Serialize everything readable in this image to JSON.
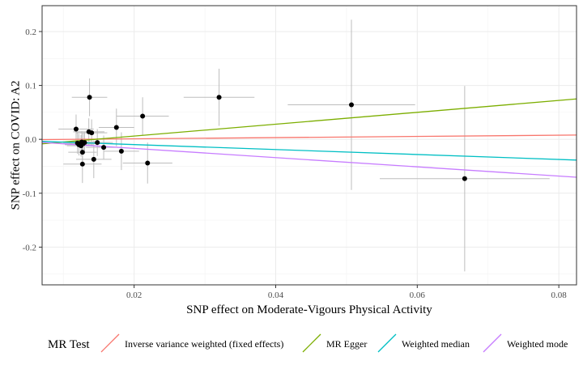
{
  "chart_data": {
    "type": "scatter",
    "xlabel": "SNP effect on Moderate-Vigours Physical Activity",
    "ylabel": "SNP effect on COVID: A2",
    "xlim": [
      0.007,
      0.0825
    ],
    "ylim": [
      -0.27,
      0.248
    ],
    "x_ticks": [
      0.02,
      0.04,
      0.06,
      0.08
    ],
    "x_tick_labels": [
      "0.02",
      "0.04",
      "0.06",
      "0.08"
    ],
    "y_ticks": [
      -0.2,
      -0.1,
      0.0,
      0.1,
      0.2
    ],
    "y_tick_labels": [
      "-0.2",
      "-0.1",
      "0.0",
      "0.1",
      "0.2"
    ],
    "grid": true,
    "theme": "bw",
    "legend": {
      "title": "MR Test",
      "position": "bottom",
      "entries": [
        {
          "label": "Inverse variance weighted (fixed effects)",
          "color": "#F8766D"
        },
        {
          "label": "MR Egger",
          "color": "#7CAE00"
        },
        {
          "label": "Weighted median",
          "color": "#00BFC4"
        },
        {
          "label": "Weighted mode",
          "color": "#C77CFF"
        }
      ]
    },
    "lines": [
      {
        "name": "Inverse variance weighted (fixed effects)",
        "color": "#F8766D",
        "x": [
          0.007,
          0.0825
        ],
        "y": [
          -0.0005,
          0.0079
        ]
      },
      {
        "name": "MR Egger",
        "color": "#7CAE00",
        "x": [
          0.007,
          0.0825
        ],
        "y": [
          -0.0083,
          0.0749
        ]
      },
      {
        "name": "Weighted median",
        "color": "#00BFC4",
        "x": [
          0.007,
          0.0825
        ],
        "y": [
          -0.0038,
          -0.0385
        ]
      },
      {
        "name": "Weighted mode",
        "color": "#C77CFF",
        "x": [
          0.007,
          0.0825
        ],
        "y": [
          -0.0057,
          -0.0703
        ]
      }
    ],
    "points": [
      {
        "x": 0.0137,
        "y": 0.078,
        "xerr": 0.0025,
        "yerr": 0.035
      },
      {
        "x": 0.0118,
        "y": 0.019,
        "xerr": 0.0025,
        "yerr": 0.027
      },
      {
        "x": 0.0136,
        "y": 0.014,
        "xerr": 0.0022,
        "yerr": 0.025
      },
      {
        "x": 0.014,
        "y": 0.012,
        "xerr": 0.0022,
        "yerr": 0.025
      },
      {
        "x": 0.0126,
        "y": -0.005,
        "xerr": 0.002,
        "yerr": 0.02
      },
      {
        "x": 0.012,
        "y": -0.007,
        "xerr": 0.002,
        "yerr": 0.02
      },
      {
        "x": 0.0122,
        "y": -0.01,
        "xerr": 0.002,
        "yerr": 0.02
      },
      {
        "x": 0.0125,
        "y": -0.012,
        "xerr": 0.002,
        "yerr": 0.02
      },
      {
        "x": 0.0128,
        "y": -0.008,
        "xerr": 0.002,
        "yerr": 0.02
      },
      {
        "x": 0.013,
        "y": -0.006,
        "xerr": 0.002,
        "yerr": 0.02
      },
      {
        "x": 0.0148,
        "y": -0.006,
        "xerr": 0.0022,
        "yerr": 0.025
      },
      {
        "x": 0.0127,
        "y": -0.024,
        "xerr": 0.002,
        "yerr": 0.022
      },
      {
        "x": 0.0143,
        "y": -0.037,
        "xerr": 0.0025,
        "yerr": 0.035
      },
      {
        "x": 0.0127,
        "y": -0.046,
        "xerr": 0.0027,
        "yerr": 0.035
      },
      {
        "x": 0.0157,
        "y": -0.015,
        "xerr": 0.0025,
        "yerr": 0.022
      },
      {
        "x": 0.0175,
        "y": 0.022,
        "xerr": 0.0025,
        "yerr": 0.035
      },
      {
        "x": 0.0182,
        "y": -0.022,
        "xerr": 0.0025,
        "yerr": 0.035
      },
      {
        "x": 0.0212,
        "y": 0.043,
        "xerr": 0.0037,
        "yerr": 0.035
      },
      {
        "x": 0.0219,
        "y": -0.044,
        "xerr": 0.0035,
        "yerr": 0.038
      },
      {
        "x": 0.032,
        "y": 0.078,
        "xerr": 0.005,
        "yerr": 0.053
      },
      {
        "x": 0.0507,
        "y": 0.064,
        "xerr": 0.009,
        "yerr": 0.158
      },
      {
        "x": 0.0667,
        "y": -0.073,
        "xerr": 0.012,
        "yerr": 0.172
      }
    ]
  }
}
